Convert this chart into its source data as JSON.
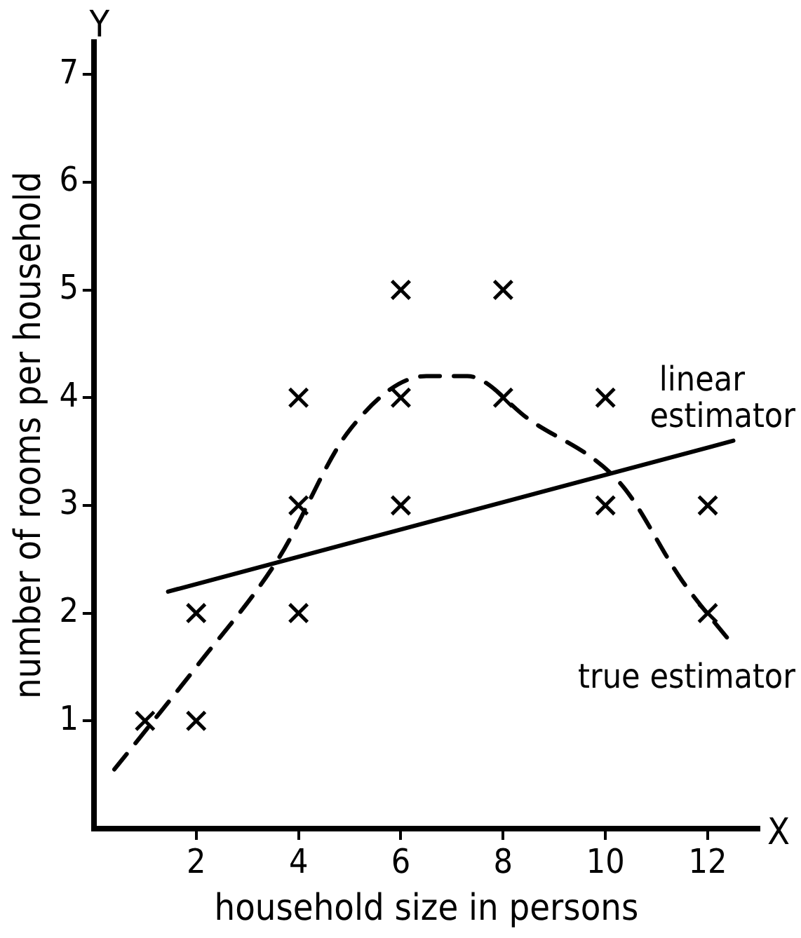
{
  "chart_data": {
    "type": "scatter",
    "xlabel": "household size in persons",
    "ylabel": "number of rooms per household",
    "xlim": [
      0,
      13
    ],
    "ylim": [
      0,
      7.3
    ],
    "xticks": [
      2,
      4,
      6,
      8,
      10,
      12
    ],
    "yticks": [
      1,
      2,
      3,
      4,
      5,
      6,
      7
    ],
    "grid": false,
    "legend": false,
    "marker": "cross",
    "annotations": [
      "Y",
      "X"
    ],
    "series": [
      {
        "color": "#000000",
        "x": [
          1,
          2,
          2,
          4,
          4,
          4,
          6,
          6,
          6,
          8,
          8,
          10,
          10,
          12,
          12
        ],
        "values": [
          1,
          1,
          2,
          2,
          3,
          4,
          3,
          4,
          5,
          4,
          5,
          3,
          4,
          3,
          2
        ]
      },
      {
        "type": "line",
        "name": "linear estimator",
        "color": "#000000",
        "line_style": "solid",
        "marker": "none",
        "x": [
          1.45,
          12.5
        ],
        "values": [
          2.2,
          3.6
        ]
      },
      {
        "type": "line",
        "name": "true estimator",
        "color": "#000000",
        "line_style": "dashed",
        "marker": "none",
        "x": [
          0.4,
          2,
          3.6,
          5,
          6.5,
          7.3,
          8.5,
          10.3,
          11.5,
          12.5
        ],
        "values": [
          0.55,
          1.5,
          2.5,
          3.7,
          4.2,
          4.2,
          3.8,
          3.2,
          2.3,
          1.7
        ]
      }
    ]
  }
}
